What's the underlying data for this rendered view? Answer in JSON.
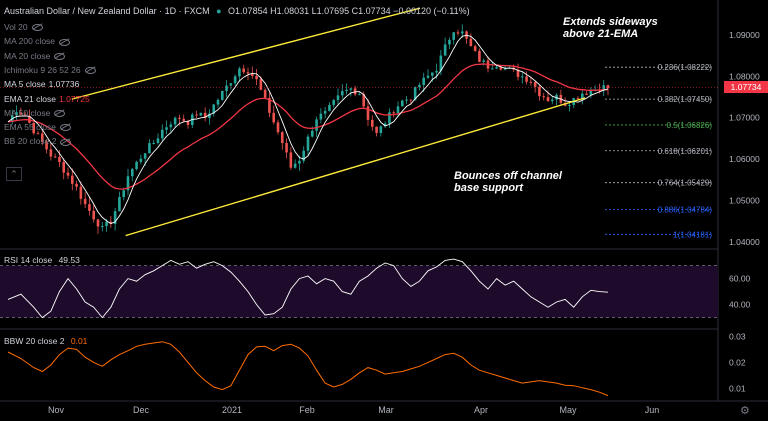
{
  "header": {
    "title": "Australian Dollar / New Zealand Dollar · 1D · FXCM",
    "ohlc": "O1.07854 H1.08031 L1.07695 C1.07734 −0.00120 (−0.11%)"
  },
  "indicators": [
    {
      "label": "Vol 20",
      "value": "",
      "active": false
    },
    {
      "label": "MA 200 close",
      "value": "",
      "active": false
    },
    {
      "label": "MA 20 close",
      "value": "",
      "active": false
    },
    {
      "label": "Ichimoku 9 26 52 26",
      "value": "",
      "active": false
    },
    {
      "label": "MA 5 close",
      "value": "1.07736",
      "active": true
    },
    {
      "label": "EMA 21 close",
      "value": "1.07725",
      "active": true
    },
    {
      "label": "MA 50 close",
      "value": "",
      "active": false
    },
    {
      "label": "EMA 55 close",
      "value": "",
      "active": false
    },
    {
      "label": "BB 20 close 2",
      "value": "",
      "active": false
    }
  ],
  "collapse_icon": "chevron-up-icon",
  "annotations": {
    "top": "Extends sideways\nabove 21-EMA",
    "bottom": "Bounces off channel\nbase support"
  },
  "last_price": "1.07734",
  "colors": {
    "up": "#26a69a",
    "down": "#ef5350",
    "ema21": "#f23645",
    "ma5": "#ffffff",
    "channel": "#ffeb3b",
    "rsi": "#ffffff",
    "bbw": "#ff6d00",
    "last": "#f23645"
  },
  "chart_data": {
    "type": "candlestick",
    "x_labels": [
      "Nov",
      "Dec",
      "2021",
      "Feb",
      "Mar",
      "Apr",
      "May",
      "Jun"
    ],
    "y_ticks": [
      "1.09000",
      "1.08000",
      "1.07000",
      "1.06000",
      "1.05000",
      "1.04000"
    ],
    "ylim": [
      1.0385,
      1.0975
    ],
    "fib_levels": [
      {
        "label": "0.236(1.08222)",
        "value": 1.08222,
        "color": "#b2b5be"
      },
      {
        "label": "0.382(1.07450)",
        "value": 1.0745,
        "color": "#b2b5be"
      },
      {
        "label": "0.5(1.06826)",
        "value": 1.06826,
        "color": "#4caf50"
      },
      {
        "label": "0.618(1.06201)",
        "value": 1.06201,
        "color": "#b2b5be"
      },
      {
        "label": "0.764(1.05429)",
        "value": 1.05429,
        "color": "#b2b5be"
      },
      {
        "label": "0.886(1.04784)",
        "value": 1.04784,
        "color": "#2962ff"
      },
      {
        "label": "1(1.04181)",
        "value": 1.04181,
        "color": "#2962ff"
      }
    ],
    "channel": {
      "upper": [
        [
          0.1,
          1.0745
        ],
        [
          0.585,
          1.0965
        ]
      ],
      "lower": [
        [
          0.175,
          1.0415
        ],
        [
          0.815,
          1.0748
        ]
      ]
    },
    "close_path": [
      [
        0,
        1.069
      ],
      [
        2,
        1.072
      ],
      [
        4,
        1.0705
      ],
      [
        6,
        1.067
      ],
      [
        8,
        1.064
      ],
      [
        10,
        1.061
      ],
      [
        12,
        1.059
      ],
      [
        14,
        1.056
      ],
      [
        16,
        1.053
      ],
      [
        18,
        1.049
      ],
      [
        20,
        1.046
      ],
      [
        22,
        1.043
      ],
      [
        24,
        1.045
      ],
      [
        26,
        1.05
      ],
      [
        28,
        1.056
      ],
      [
        30,
        1.059
      ],
      [
        32,
        1.062
      ],
      [
        34,
        1.064
      ],
      [
        36,
        1.067
      ],
      [
        38,
        1.069
      ],
      [
        40,
        1.07
      ],
      [
        42,
        1.069
      ],
      [
        44,
        1.071
      ],
      [
        46,
        1.07
      ],
      [
        48,
        1.073
      ],
      [
        50,
        1.076
      ],
      [
        52,
        1.079
      ],
      [
        54,
        1.082
      ],
      [
        56,
        1.0815
      ],
      [
        58,
        1.079
      ],
      [
        60,
        1.074
      ],
      [
        62,
        1.069
      ],
      [
        64,
        1.064
      ],
      [
        66,
        1.058
      ],
      [
        68,
        1.06
      ],
      [
        70,
        1.065
      ],
      [
        72,
        1.07
      ],
      [
        74,
        1.071
      ],
      [
        76,
        1.0735
      ],
      [
        78,
        1.076
      ],
      [
        80,
        1.077
      ],
      [
        82,
        1.076
      ],
      [
        84,
        1.07
      ],
      [
        86,
        1.066
      ],
      [
        88,
        1.069
      ],
      [
        90,
        1.072
      ],
      [
        92,
        1.074
      ],
      [
        94,
        1.075
      ],
      [
        96,
        1.078
      ],
      [
        98,
        1.08
      ],
      [
        100,
        1.082
      ],
      [
        102,
        1.087
      ],
      [
        104,
        1.0915
      ],
      [
        106,
        1.0905
      ],
      [
        108,
        1.087
      ],
      [
        110,
        1.084
      ],
      [
        112,
        1.0825
      ],
      [
        114,
        1.083
      ],
      [
        116,
        1.082
      ],
      [
        118,
        1.081
      ],
      [
        120,
        1.08
      ],
      [
        122,
        1.079
      ],
      [
        124,
        1.076
      ],
      [
        126,
        1.0745
      ],
      [
        128,
        1.075
      ],
      [
        130,
        1.0735
      ],
      [
        132,
        1.0745
      ],
      [
        134,
        1.076
      ],
      [
        136,
        1.0765
      ],
      [
        138,
        1.0775
      ],
      [
        140,
        1.0773
      ]
    ],
    "rsi": {
      "label": "RSI 14 close",
      "value": "49.53",
      "y_ticks": [
        "60.00",
        "40.00"
      ],
      "ylim": [
        22,
        82
      ],
      "bands": [
        70,
        30
      ],
      "path": [
        [
          0,
          44
        ],
        [
          3,
          48
        ],
        [
          6,
          38
        ],
        [
          8,
          30
        ],
        [
          10,
          35
        ],
        [
          12,
          50
        ],
        [
          14,
          60
        ],
        [
          16,
          52
        ],
        [
          18,
          42
        ],
        [
          20,
          38
        ],
        [
          22,
          30
        ],
        [
          24,
          38
        ],
        [
          26,
          52
        ],
        [
          28,
          60
        ],
        [
          30,
          58
        ],
        [
          32,
          63
        ],
        [
          34,
          66
        ],
        [
          36,
          70
        ],
        [
          38,
          74
        ],
        [
          40,
          71
        ],
        [
          42,
          73
        ],
        [
          44,
          68
        ],
        [
          46,
          71
        ],
        [
          48,
          73
        ],
        [
          50,
          70
        ],
        [
          52,
          65
        ],
        [
          54,
          58
        ],
        [
          56,
          50
        ],
        [
          58,
          40
        ],
        [
          60,
          32
        ],
        [
          62,
          33
        ],
        [
          64,
          38
        ],
        [
          66,
          52
        ],
        [
          68,
          60
        ],
        [
          70,
          62
        ],
        [
          72,
          56
        ],
        [
          74,
          60
        ],
        [
          76,
          58
        ],
        [
          78,
          50
        ],
        [
          80,
          48
        ],
        [
          82,
          58
        ],
        [
          84,
          62
        ],
        [
          86,
          68
        ],
        [
          88,
          72
        ],
        [
          90,
          70
        ],
        [
          92,
          60
        ],
        [
          94,
          54
        ],
        [
          96,
          58
        ],
        [
          98,
          66
        ],
        [
          100,
          69
        ],
        [
          102,
          74
        ],
        [
          104,
          75
        ],
        [
          106,
          73
        ],
        [
          108,
          66
        ],
        [
          110,
          58
        ],
        [
          112,
          52
        ],
        [
          114,
          60
        ],
        [
          116,
          55
        ],
        [
          118,
          58
        ],
        [
          120,
          52
        ],
        [
          122,
          46
        ],
        [
          124,
          42
        ],
        [
          126,
          38
        ],
        [
          128,
          42
        ],
        [
          130,
          44
        ],
        [
          132,
          38
        ],
        [
          134,
          46
        ],
        [
          136,
          51
        ],
        [
          138,
          50
        ],
        [
          140,
          49.53
        ]
      ]
    },
    "bbw": {
      "label": "BBW 20 close 2",
      "value": "0.01",
      "y_ticks": [
        "0.03",
        "0.02",
        "0.01"
      ],
      "ylim": [
        0.0055,
        0.0325
      ],
      "path": [
        [
          0,
          0.024
        ],
        [
          3,
          0.0215
        ],
        [
          6,
          0.018
        ],
        [
          8,
          0.0165
        ],
        [
          10,
          0.019
        ],
        [
          12,
          0.023
        ],
        [
          14,
          0.0255
        ],
        [
          16,
          0.025
        ],
        [
          18,
          0.022
        ],
        [
          20,
          0.02
        ],
        [
          22,
          0.0185
        ],
        [
          24,
          0.021
        ],
        [
          26,
          0.023
        ],
        [
          28,
          0.0245
        ],
        [
          30,
          0.0262
        ],
        [
          32,
          0.027
        ],
        [
          34,
          0.0275
        ],
        [
          36,
          0.028
        ],
        [
          38,
          0.027
        ],
        [
          40,
          0.024
        ],
        [
          42,
          0.02
        ],
        [
          44,
          0.016
        ],
        [
          46,
          0.013
        ],
        [
          48,
          0.0105
        ],
        [
          50,
          0.0095
        ],
        [
          52,
          0.011
        ],
        [
          54,
          0.017
        ],
        [
          56,
          0.023
        ],
        [
          58,
          0.026
        ],
        [
          60,
          0.0262
        ],
        [
          62,
          0.0245
        ],
        [
          64,
          0.0265
        ],
        [
          66,
          0.027
        ],
        [
          68,
          0.0255
        ],
        [
          70,
          0.0225
        ],
        [
          72,
          0.017
        ],
        [
          74,
          0.012
        ],
        [
          76,
          0.0105
        ],
        [
          78,
          0.0115
        ],
        [
          80,
          0.0135
        ],
        [
          82,
          0.016
        ],
        [
          84,
          0.018
        ],
        [
          86,
          0.017
        ],
        [
          88,
          0.0155
        ],
        [
          90,
          0.016
        ],
        [
          92,
          0.0165
        ],
        [
          94,
          0.0175
        ],
        [
          96,
          0.0185
        ],
        [
          98,
          0.02
        ],
        [
          100,
          0.0215
        ],
        [
          102,
          0.023
        ],
        [
          104,
          0.0235
        ],
        [
          106,
          0.022
        ],
        [
          108,
          0.019
        ],
        [
          110,
          0.017
        ],
        [
          112,
          0.016
        ],
        [
          114,
          0.015
        ],
        [
          116,
          0.014
        ],
        [
          118,
          0.013
        ],
        [
          120,
          0.012
        ],
        [
          122,
          0.0125
        ],
        [
          124,
          0.013
        ],
        [
          126,
          0.0125
        ],
        [
          128,
          0.012
        ],
        [
          130,
          0.0112
        ],
        [
          132,
          0.011
        ],
        [
          134,
          0.0102
        ],
        [
          136,
          0.0095
        ],
        [
          138,
          0.0085
        ],
        [
          140,
          0.0072
        ]
      ]
    }
  }
}
